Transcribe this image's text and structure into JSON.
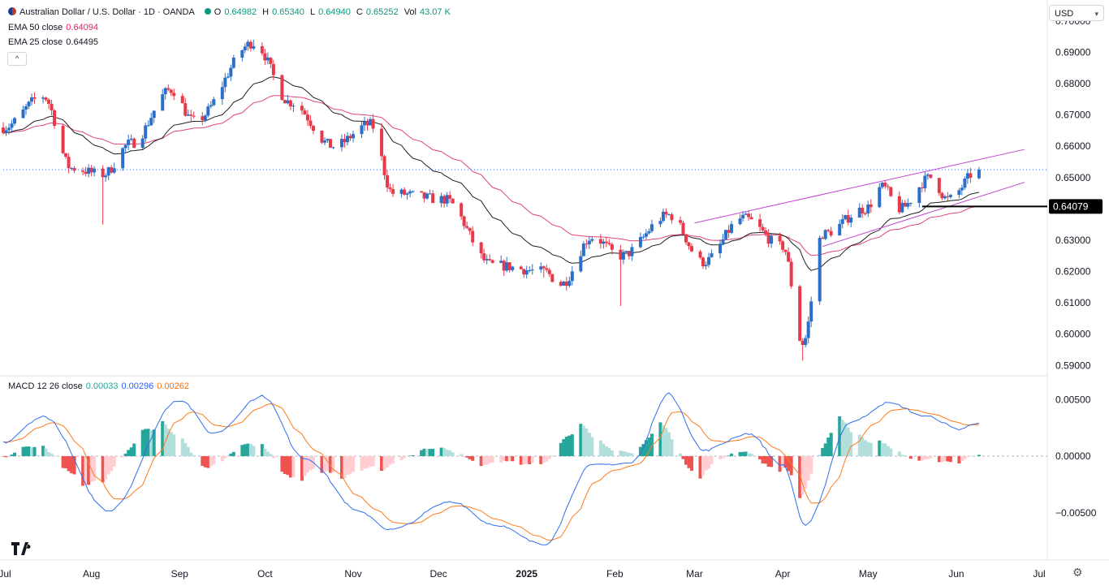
{
  "header": {
    "symbol": "Australian Dollar / U.S. Dollar · 1D · OANDA",
    "open_label": "O",
    "open": "0.64982",
    "high_label": "H",
    "high": "0.65340",
    "low_label": "L",
    "low": "0.64940",
    "close_label": "C",
    "close": "0.65252",
    "vol_label": "Vol",
    "vol": "43.07 K",
    "ema50_label": "EMA 50 close",
    "ema50_value": "0.64094",
    "ema25_label": "EMA 25 close",
    "ema25_value": "0.64495",
    "collapse_icon": "chevron-up-icon"
  },
  "currency_select": {
    "value": "USD"
  },
  "macd_header": {
    "label": "MACD 12 26 close",
    "hist": "0.00033",
    "macd": "0.00296",
    "signal": "0.00262"
  },
  "colors": {
    "up": "#2b6fca",
    "down": "#e8394b",
    "ema50": "#e0427a",
    "ema25": "#1f1f1f",
    "channel": "#c244d1",
    "macd": "#2f6ff0",
    "signal": "#ff7a1a",
    "hist_up_strong": "#26a69a",
    "hist_up_weak": "#b2dfdb",
    "hist_down_strong": "#ef5350",
    "hist_down_weak": "#ffcdd2"
  },
  "price_axis": {
    "ticks": [
      "0.70000",
      "0.69000",
      "0.68000",
      "0.67000",
      "0.66000",
      "0.65000",
      "0.64000",
      "0.63000",
      "0.62000",
      "0.61000",
      "0.60000",
      "0.59000"
    ],
    "current_line": 0.6525,
    "support_label": "0.64079",
    "support_level": 0.64079
  },
  "macd_axis": {
    "ticks": [
      "0.00500",
      "0.00000",
      "−0.00500"
    ]
  },
  "time_axis": {
    "labels": [
      "Jul",
      "Aug",
      "Sep",
      "Oct",
      "Nov",
      "Dec",
      "2025",
      "Feb",
      "Mar",
      "Apr",
      "May",
      "Jun",
      "Jul"
    ]
  },
  "chart_data": {
    "type": "candlestick",
    "title": "Australian Dollar / U.S. Dollar · 1D · OANDA",
    "ylim": [
      0.588,
      0.701
    ],
    "x_range": [
      "2024-07-01",
      "2025-07-01"
    ],
    "key_points": [
      {
        "date": "2024-07-01",
        "close": 0.666
      },
      {
        "date": "2024-07-15",
        "close": 0.676
      },
      {
        "date": "2024-07-25",
        "close": 0.653
      },
      {
        "date": "2024-08-05",
        "close": 0.651,
        "low": 0.635
      },
      {
        "date": "2024-08-15",
        "close": 0.661
      },
      {
        "date": "2024-08-29",
        "close": 0.678
      },
      {
        "date": "2024-09-06",
        "close": 0.668
      },
      {
        "date": "2024-09-27",
        "close": 0.693,
        "high": 0.694
      },
      {
        "date": "2024-10-10",
        "close": 0.674
      },
      {
        "date": "2024-10-25",
        "close": 0.66
      },
      {
        "date": "2024-11-07",
        "close": 0.667
      },
      {
        "date": "2024-11-15",
        "close": 0.645
      },
      {
        "date": "2024-12-03",
        "close": 0.643
      },
      {
        "date": "2024-12-20",
        "close": 0.622
      },
      {
        "date": "2025-01-07",
        "close": 0.62,
        "low": 0.618
      },
      {
        "date": "2025-01-13",
        "close": 0.616
      },
      {
        "date": "2025-01-24",
        "close": 0.631
      },
      {
        "date": "2025-02-03",
        "close": 0.625,
        "low": 0.609
      },
      {
        "date": "2025-02-20",
        "close": 0.638
      },
      {
        "date": "2025-03-04",
        "close": 0.623
      },
      {
        "date": "2025-03-18",
        "close": 0.637
      },
      {
        "date": "2025-04-01",
        "close": 0.628
      },
      {
        "date": "2025-04-08",
        "close": 0.597,
        "low": 0.5915
      },
      {
        "date": "2025-04-15",
        "close": 0.632
      },
      {
        "date": "2025-04-30",
        "close": 0.64
      },
      {
        "date": "2025-05-06",
        "close": 0.647
      },
      {
        "date": "2025-05-12",
        "close": 0.64
      },
      {
        "date": "2025-05-23",
        "close": 0.65
      },
      {
        "date": "2025-05-29",
        "close": 0.643
      },
      {
        "date": "2025-06-09",
        "close": 0.6525,
        "open": 0.6498,
        "high": 0.6534,
        "low": 0.6494
      }
    ],
    "ema50_last": 0.64094,
    "ema25_last": 0.64495,
    "channel_upper": [
      {
        "date": "2025-03-01",
        "value": 0.6355
      },
      {
        "date": "2025-06-25",
        "value": 0.659
      }
    ],
    "channel_lower": [
      {
        "date": "2025-04-15",
        "value": 0.628
      },
      {
        "date": "2025-06-25",
        "value": 0.6485
      }
    ],
    "macd": {
      "ylim": [
        -0.0086,
        0.0066
      ],
      "key_points": [
        {
          "date": "2024-07-01",
          "macd": 0.0012
        },
        {
          "date": "2024-07-15",
          "macd": 0.0035
        },
        {
          "date": "2024-08-07",
          "macd": -0.0048
        },
        {
          "date": "2024-09-01",
          "macd": 0.005
        },
        {
          "date": "2024-09-13",
          "macd": 0.002
        },
        {
          "date": "2024-09-30",
          "macd": 0.0053
        },
        {
          "date": "2024-10-15",
          "macd": -0.0002
        },
        {
          "date": "2024-11-04",
          "macd": -0.005
        },
        {
          "date": "2024-11-14",
          "macd": -0.0065
        },
        {
          "date": "2024-12-06",
          "macd": -0.004
        },
        {
          "date": "2024-12-20",
          "macd": -0.006
        },
        {
          "date": "2025-01-07",
          "macd": -0.0078
        },
        {
          "date": "2025-01-24",
          "macd": -0.0008
        },
        {
          "date": "2025-02-07",
          "macd": -0.0006
        },
        {
          "date": "2025-02-20",
          "macd": 0.0055
        },
        {
          "date": "2025-03-04",
          "macd": 0.0005
        },
        {
          "date": "2025-03-20",
          "macd": 0.002
        },
        {
          "date": "2025-04-01",
          "macd": -0.0008
        },
        {
          "date": "2025-04-09",
          "macd": -0.0061
        },
        {
          "date": "2025-04-25",
          "macd": 0.003
        },
        {
          "date": "2025-05-08",
          "macd": 0.0047
        },
        {
          "date": "2025-05-22",
          "macd": 0.0035
        },
        {
          "date": "2025-06-02",
          "macd": 0.0024
        },
        {
          "date": "2025-06-09",
          "macd": 0.00296
        }
      ]
    }
  }
}
